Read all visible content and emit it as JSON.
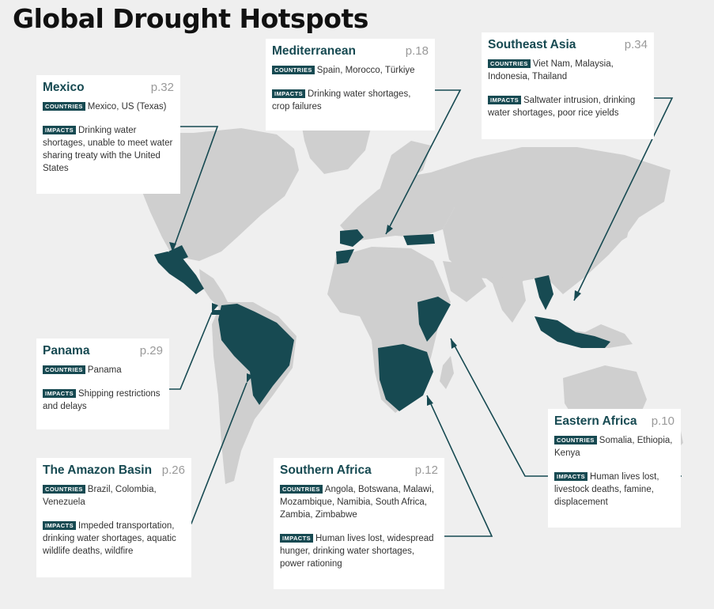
{
  "title": "Global Drought Hotspots",
  "colors": {
    "highlight": "#174a52",
    "land": "#cfcfcf",
    "ocean": "#efefef",
    "card": "#ffffff",
    "page_number": "#9a9a9a"
  },
  "tag_labels": {
    "countries": "COUNTRIES",
    "impacts": "IMPACTS"
  },
  "hotspots": [
    {
      "name": "Mexico",
      "page": "p.32",
      "countries": "Mexico, US (Texas)",
      "impacts": "Drinking water shortages, unable to meet water sharing treaty with the United States"
    },
    {
      "name": "Mediterranean",
      "page": "p.18",
      "countries": "Spain, Morocco, Türkiye",
      "impacts": "Drinking water shortages, crop failures"
    },
    {
      "name": "Southeast Asia",
      "page": "p.34",
      "countries": "Viet Nam, Malaysia, Indonesia, Thailand",
      "impacts": "Saltwater intrusion, drinking water shortages, poor rice yields"
    },
    {
      "name": "Panama",
      "page": "p.29",
      "countries": "Panama",
      "impacts": "Shipping restrictions and delays"
    },
    {
      "name": "The Amazon Basin",
      "page": "p.26",
      "countries": "Brazil, Colombia, Venezuela",
      "impacts": "Impeded transportation, drinking water shortages, aquatic wildlife deaths, wildfire"
    },
    {
      "name": "Southern Africa",
      "page": "p.12",
      "countries": "Angola, Botswana, Malawi, Mozambique, Namibia, South Africa, Zambia, Zimbabwe",
      "impacts": "Human lives lost, widespread hunger, drinking water shortages, power rationing"
    },
    {
      "name": "Eastern Africa",
      "page": "p.10",
      "countries": "Somalia, Ethiopia, Kenya",
      "impacts": "Human lives lost, livestock deaths, famine, displacement"
    }
  ]
}
